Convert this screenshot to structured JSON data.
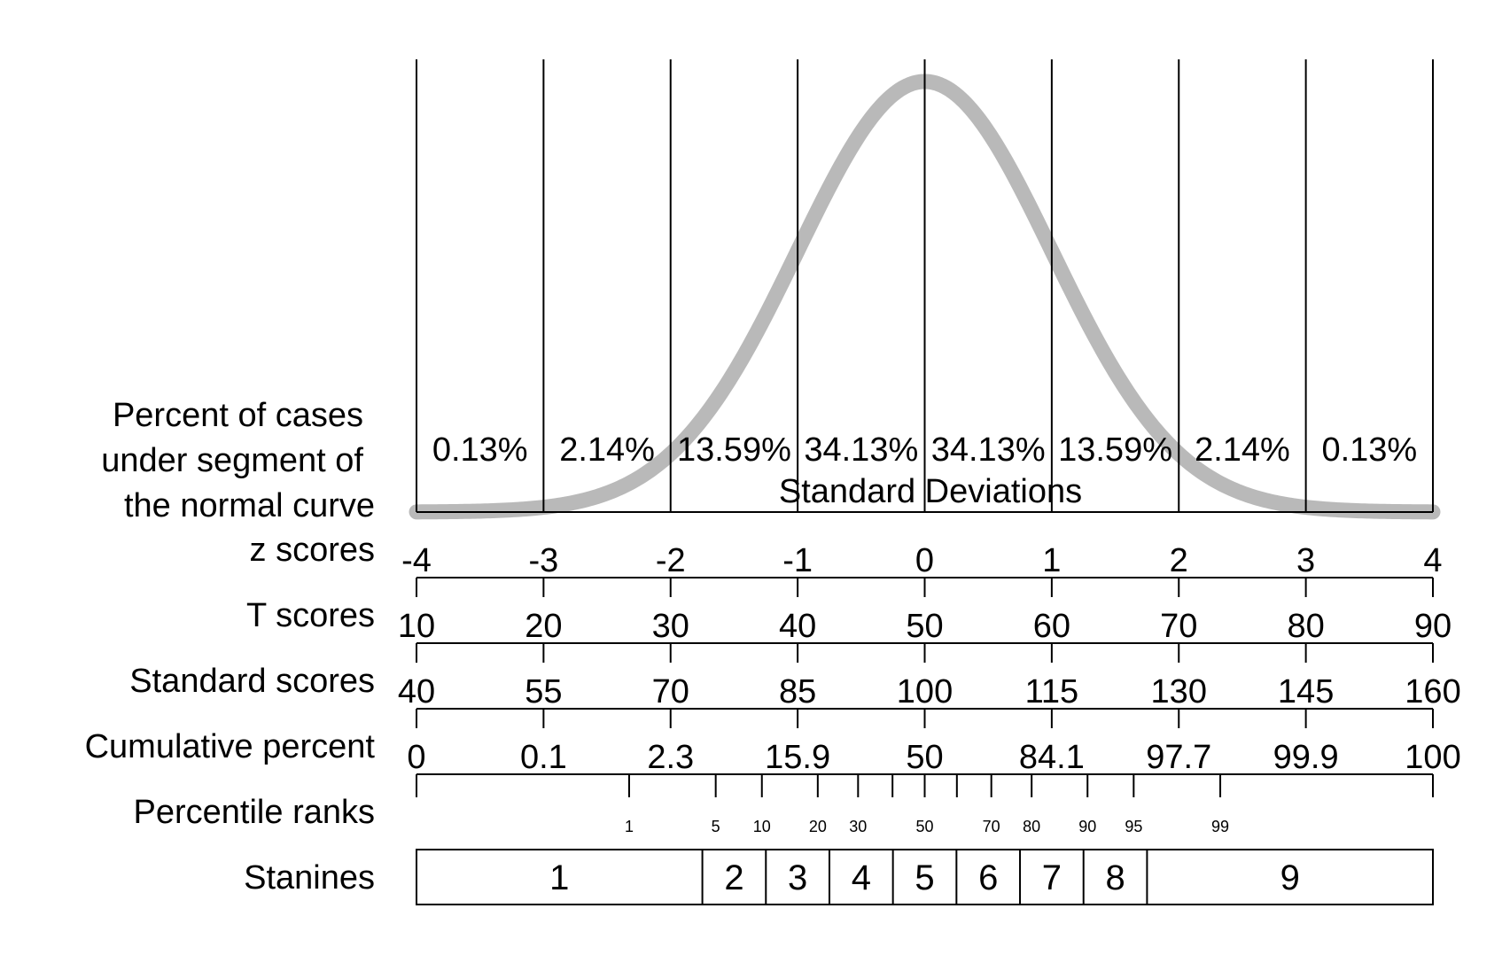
{
  "chart_data": {
    "type": "line",
    "curve": "normal",
    "curve_color": "#b9b9b9",
    "line_color": "#000000",
    "axis_title": "Standard Deviations",
    "sd_range": [
      -4,
      4
    ],
    "sd_lines": [
      -4,
      -3,
      -2,
      -1,
      0,
      1,
      2,
      3,
      4
    ],
    "row_labels": {
      "percent": "Percent of cases\nunder segment of\nthe normal curve",
      "z": "z scores",
      "t": "T scores",
      "standard": "Standard scores",
      "cumulative": "Cumulative percent",
      "percentile": "Percentile ranks",
      "stanines": "Stanines"
    },
    "segment_percents": [
      "0.13%",
      "2.14%",
      "13.59%",
      "34.13%",
      "34.13%",
      "13.59%",
      "2.14%",
      "0.13%"
    ],
    "z_scores": [
      "-4",
      "-3",
      "-2",
      "-1",
      "0",
      "1",
      "2",
      "3",
      "4"
    ],
    "t_scores": [
      "10",
      "20",
      "30",
      "40",
      "50",
      "60",
      "70",
      "80",
      "90"
    ],
    "standard_scores": [
      "40",
      "55",
      "70",
      "85",
      "100",
      "115",
      "130",
      "145",
      "160"
    ],
    "cumulative_percent": [
      "0",
      "0.1",
      "2.3",
      "15.9",
      "50",
      "84.1",
      "97.7",
      "99.9",
      "100"
    ],
    "percentile_ranks": [
      1,
      5,
      10,
      20,
      30,
      40,
      50,
      60,
      70,
      80,
      90,
      95,
      99
    ],
    "percentile_labels": [
      "1",
      "5",
      "10",
      "20",
      "30",
      "50",
      "70",
      "80",
      "90",
      "95",
      "99"
    ],
    "stanines": [
      "1",
      "2",
      "3",
      "4",
      "5",
      "6",
      "7",
      "8",
      "9"
    ],
    "stanine_bounds_sd": [
      -1.75,
      -1.25,
      -0.75,
      -0.25,
      0.25,
      0.75,
      1.25,
      1.75
    ]
  }
}
